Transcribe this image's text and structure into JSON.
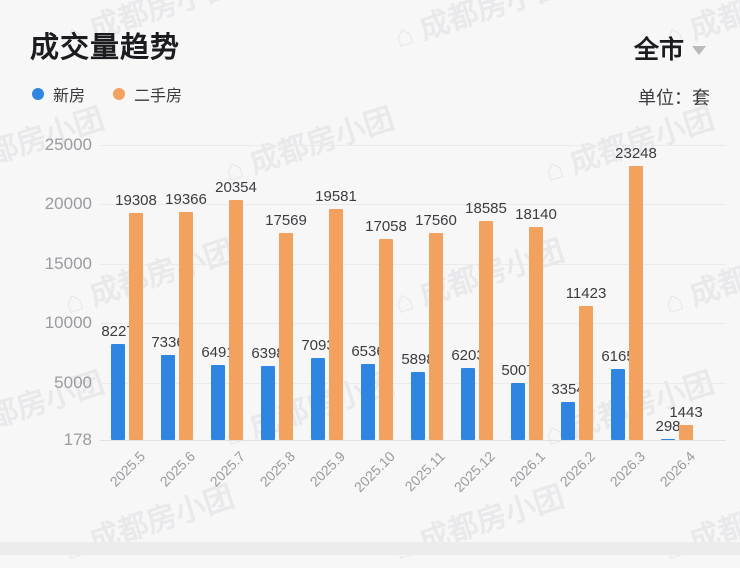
{
  "header": {
    "title": "成交量趋势",
    "region": "全市",
    "unit_label": "单位：套"
  },
  "legend": {
    "items": [
      {
        "label": "新房",
        "color": "#2E86E2"
      },
      {
        "label": "二手房",
        "color": "#F2A25E"
      }
    ]
  },
  "watermark": {
    "icon": "house-logo",
    "text": "成都房小团"
  },
  "colors": {
    "new_home_bar": "#2E86E2",
    "resale_bar": "#F2A25E",
    "axis_label": "#9B9BA0",
    "data_label": "#3C3C40",
    "gridline": "#EBEBEE",
    "title_text": "#1C1C20"
  },
  "chart_data": {
    "type": "bar",
    "title": "成交量趋势",
    "unit": "套",
    "categories": [
      "2025.5",
      "2025.6",
      "2025.7",
      "2025.8",
      "2025.9",
      "2025.10",
      "2025.11",
      "2025.12",
      "2026.1",
      "2026.2",
      "2026.3",
      "2026.4"
    ],
    "series": [
      {
        "name": "新房",
        "color": "#2E86E2",
        "values": [
          8227,
          7336,
          6491,
          6398,
          7093,
          6536,
          5898,
          6203,
          5007,
          3354,
          6165,
          298
        ]
      },
      {
        "name": "二手房",
        "color": "#F2A25E",
        "values": [
          19308,
          19366,
          20354,
          17569,
          19581,
          17058,
          17560,
          18585,
          18140,
          11423,
          23248,
          1443
        ]
      }
    ],
    "y_axis": {
      "min": 178,
      "max": 25000,
      "ticks": [
        25000,
        20000,
        15000,
        10000,
        5000,
        178
      ]
    },
    "grid": true,
    "legend_position": "top-left",
    "x_label_rotation": -45
  }
}
